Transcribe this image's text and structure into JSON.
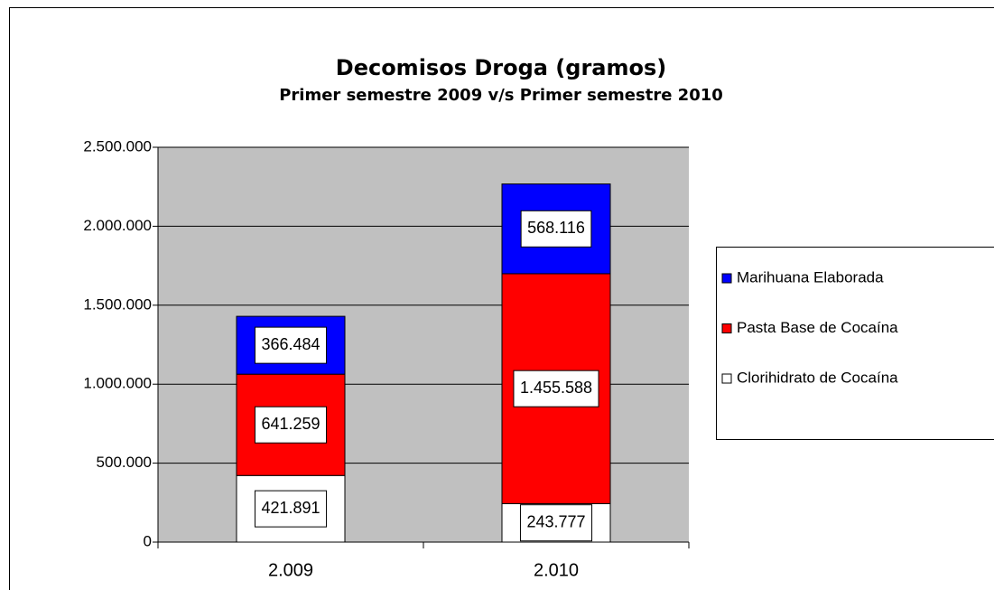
{
  "chart_data": {
    "type": "stacked-bar",
    "title": "Decomisos Droga (gramos)",
    "subtitle": "Primer semestre 2009  v/s Primer semestre 2010",
    "categories": [
      "2.009",
      "2.010"
    ],
    "series": [
      {
        "name": "Clorihidrato de Cocaína",
        "color": "#ffffff",
        "values": [
          421891,
          243777
        ],
        "value_labels": [
          "421.891",
          "243.777"
        ]
      },
      {
        "name": "Pasta Base de Cocaína",
        "color": "#ff0000",
        "values": [
          641259,
          1455588
        ],
        "value_labels": [
          "641.259",
          "1.455.588"
        ]
      },
      {
        "name": "Marihuana Elaborada",
        "color": "#0000ff",
        "values": [
          366484,
          568116
        ],
        "value_labels": [
          "366.484",
          "568.116"
        ]
      }
    ],
    "ylim": [
      0,
      2500000
    ],
    "yticks": [
      0,
      {
        "value": 500000,
        "label": "500.000"
      },
      {
        "value": 1000000,
        "label": "1.000.000"
      },
      {
        "value": 1500000,
        "label": "1.500.000"
      },
      {
        "value": 2000000,
        "label": "2.000.000"
      },
      {
        "value": 2500000,
        "label": "2.500.000"
      }
    ],
    "grid": true,
    "legend": "right"
  }
}
